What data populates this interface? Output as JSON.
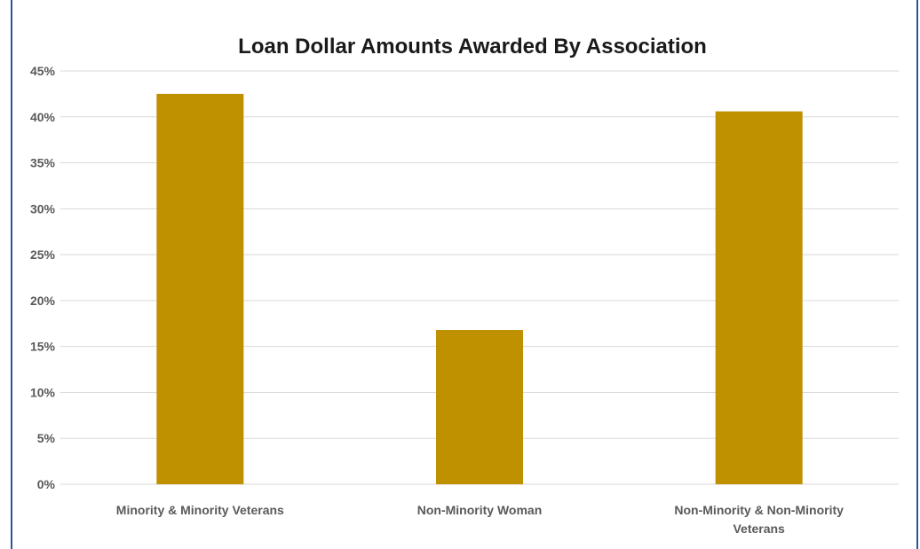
{
  "chart_data": {
    "type": "bar",
    "title": "Loan Dollar Amounts Awarded By Association",
    "xlabel": "",
    "ylabel": "",
    "categories": [
      [
        "Minority & Minority Veterans"
      ],
      [
        "Non-Minority Woman"
      ],
      [
        "Non-Minority & Non-Minority",
        "Veterans"
      ]
    ],
    "values": [
      0.425,
      0.168,
      0.406
    ],
    "ylim": [
      0,
      0.45
    ],
    "yticks": [
      {
        "value": 0,
        "label": "0%"
      },
      {
        "value": 0.05,
        "label": "5%"
      },
      {
        "value": 0.1,
        "label": "10%"
      },
      {
        "value": 0.15,
        "label": "15%"
      },
      {
        "value": 0.2,
        "label": "20%"
      },
      {
        "value": 0.25,
        "label": "25%"
      },
      {
        "value": 0.3,
        "label": "30%"
      },
      {
        "value": 0.35,
        "label": "35%"
      },
      {
        "value": 0.4,
        "label": "40%"
      },
      {
        "value": 0.45,
        "label": "45%"
      }
    ],
    "grid": true,
    "legend": "none",
    "bar_color": "#bf9000"
  }
}
